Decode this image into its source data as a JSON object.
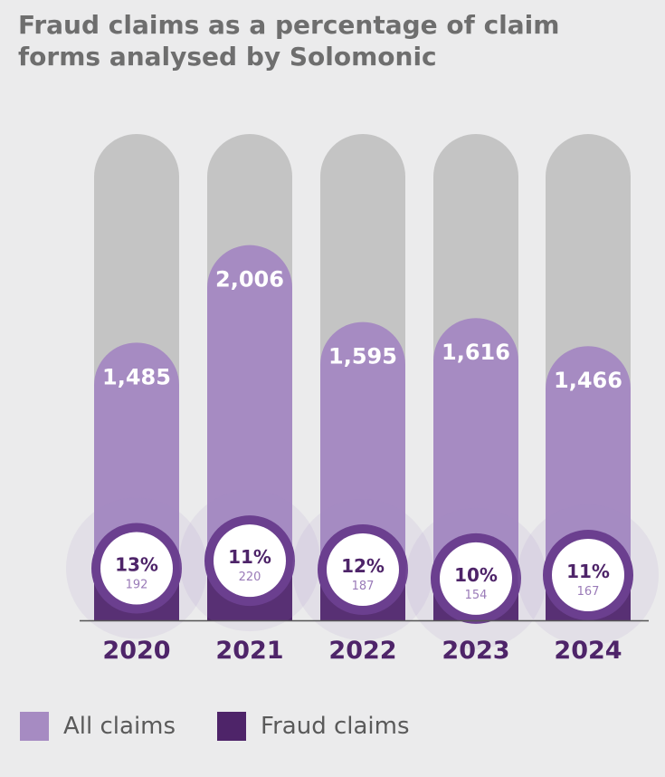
{
  "title": {
    "line1": "Fraud claims as a percentage of claim",
    "line2": "forms analysed by Solomonic"
  },
  "colors": {
    "background": "#ebebec",
    "capacity": "#c4c4c4",
    "all_claims": "#a68bc2",
    "fraud_claims": "#4e2469",
    "ring": "#6b3f8f",
    "year_label": "#4e2469"
  },
  "chart_data": {
    "type": "bar",
    "categories": [
      "2020",
      "2021",
      "2022",
      "2023",
      "2024"
    ],
    "series": [
      {
        "name": "All claims",
        "values": [
          1485,
          2006,
          1595,
          1616,
          1466
        ],
        "labels": [
          "1,485",
          "2,006",
          "1,595",
          "1,616",
          "1,466"
        ]
      },
      {
        "name": "Fraud claims",
        "values": [
          192,
          220,
          187,
          154,
          167
        ],
        "labels": [
          "192",
          "220",
          "187",
          "154",
          "167"
        ]
      }
    ],
    "fraud_percent": [
      13,
      11,
      12,
      10,
      11
    ],
    "fraud_percent_labels": [
      "13%",
      "11%",
      "12%",
      "10%",
      "11%"
    ],
    "ylim": [
      0,
      2600
    ],
    "grid": false,
    "legend_position": "bottom-left"
  },
  "legend": [
    {
      "label": "All claims",
      "color": "#a68bc2"
    },
    {
      "label": "Fraud claims",
      "color": "#4e2469"
    }
  ]
}
